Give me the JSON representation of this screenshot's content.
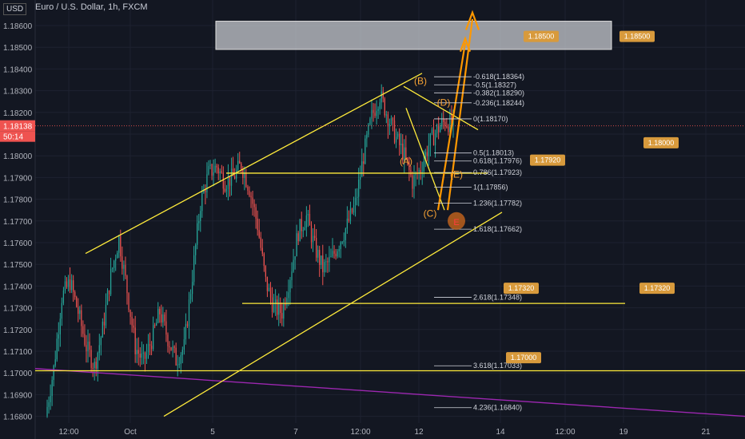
{
  "header": {
    "title": "Euro / U.S. Dollar, 1h, FXCM",
    "currency": "USD"
  },
  "colors": {
    "background": "#131722",
    "bull": "#26a69a",
    "bear": "#ef5350",
    "trendline": "#ffeb3b",
    "projection": "#ff9800",
    "wave_label": "#f7a234",
    "long_trend": "#9c27b0",
    "tag": "#d89a3c"
  },
  "chart_data": {
    "type": "candlestick",
    "symbol": "EURUSD",
    "interval": "1h",
    "ylim": [
      1.1674,
      1.1874
    ],
    "y_ticks": [
      "1.18600",
      "1.18500",
      "1.18400",
      "1.18300",
      "1.18200",
      "1.18100",
      "1.18000",
      "1.17900",
      "1.17800",
      "1.17700",
      "1.17600",
      "1.17500",
      "1.17400",
      "1.17300",
      "1.17200",
      "1.17100",
      "1.17000",
      "1.16900",
      "1.16800"
    ],
    "x_ticks": [
      "12:00",
      "Oct",
      "5",
      "7",
      "12:00",
      "12",
      "14",
      "12:00",
      "19",
      "21"
    ],
    "price_labels": {
      "last": "1.18138",
      "countdown": "50:14"
    },
    "price_path": [
      1.168,
      1.1702,
      1.1735,
      1.1742,
      1.1728,
      1.1712,
      1.1703,
      1.172,
      1.1745,
      1.1762,
      1.1738,
      1.1712,
      1.1705,
      1.1715,
      1.1728,
      1.1716,
      1.1706,
      1.1712,
      1.1745,
      1.1778,
      1.1792,
      1.1795,
      1.1788,
      1.179,
      1.1796,
      1.1785,
      1.1768,
      1.1742,
      1.173,
      1.1728,
      1.1745,
      1.1765,
      1.1772,
      1.1758,
      1.1748,
      1.1752,
      1.176,
      1.1768,
      1.1778,
      1.18,
      1.1818,
      1.1828,
      1.1818,
      1.1808,
      1.18,
      1.1788,
      1.1794,
      1.1805,
      1.1812,
      1.1816,
      1.1814
    ],
    "fib_levels": [
      {
        "label": "-0.618(1.18364)",
        "value": 1.18364
      },
      {
        "label": "-0.5(1.18327)",
        "value": 1.18327
      },
      {
        "label": "-0.382(1.18290)",
        "value": 1.1829
      },
      {
        "label": "-0.236(1.18244)",
        "value": 1.18244
      },
      {
        "label": "0(1.18170)",
        "value": 1.1817
      },
      {
        "label": "0.5(1.18013)",
        "value": 1.18013
      },
      {
        "label": "0.618(1.17976)",
        "value": 1.17976
      },
      {
        "label": "0.786(1.17923)",
        "value": 1.17923
      },
      {
        "label": "1(1.17856)",
        "value": 1.17856
      },
      {
        "label": "1.236(1.17782)",
        "value": 1.17782
      },
      {
        "label": "1.618(1.17662)",
        "value": 1.17662
      },
      {
        "label": "2.618(1.17348)",
        "value": 1.17348
      },
      {
        "label": "3.618(1.17033)",
        "value": 1.17033
      },
      {
        "label": "4.236(1.16840)",
        "value": 1.1684
      }
    ],
    "wave_labels": [
      "(A)",
      "(B)",
      "(C)",
      "(D)",
      "(E)",
      "E"
    ],
    "price_tags": [
      "1.18500",
      "1.18500",
      "1.18000",
      "1.17920",
      "1.17320",
      "1.17320",
      "1.17000"
    ],
    "zone": {
      "from": 1.1849,
      "to": 1.1862
    },
    "horizontal_levels": [
      1.1792,
      1.1732,
      1.1701
    ]
  }
}
